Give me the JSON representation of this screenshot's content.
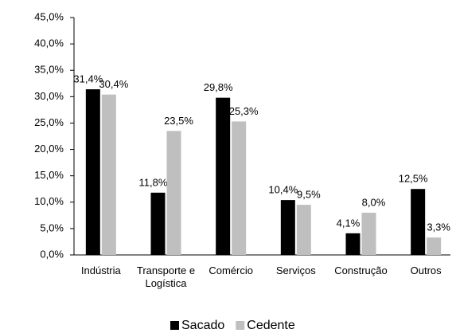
{
  "chart_data": {
    "type": "bar",
    "categories": [
      "Indústria",
      "Transporte e Logística",
      "Comércio",
      "Serviços",
      "Construção",
      "Outros"
    ],
    "series": [
      {
        "name": "Sacado",
        "color": "#000000",
        "values": [
          31.4,
          11.8,
          29.8,
          10.4,
          4.1,
          12.5
        ],
        "value_labels": [
          "31,4%",
          "11,8%",
          "29,8%",
          "10,4%",
          "4,1%",
          "12,5%"
        ]
      },
      {
        "name": "Cedente",
        "color": "#bfbfbf",
        "values": [
          30.4,
          23.5,
          25.3,
          9.5,
          8.0,
          3.3
        ],
        "value_labels": [
          "30,4%",
          "23,5%",
          "25,3%",
          "9,5%",
          "8,0%",
          "3,3%"
        ]
      }
    ],
    "ylim": [
      0,
      45
    ],
    "yticks": [
      {
        "value": 0,
        "label": "0,0%"
      },
      {
        "value": 5,
        "label": "5,0%"
      },
      {
        "value": 10,
        "label": "10,0%"
      },
      {
        "value": 15,
        "label": "15,0%"
      },
      {
        "value": 20,
        "label": "20,0%"
      },
      {
        "value": 25,
        "label": "25,0%"
      },
      {
        "value": 30,
        "label": "30,0%"
      },
      {
        "value": 35,
        "label": "35,0%"
      },
      {
        "value": 40,
        "label": "40,0%"
      },
      {
        "value": 45,
        "label": "45,0%"
      }
    ],
    "grid": false,
    "legend": "bottom"
  }
}
